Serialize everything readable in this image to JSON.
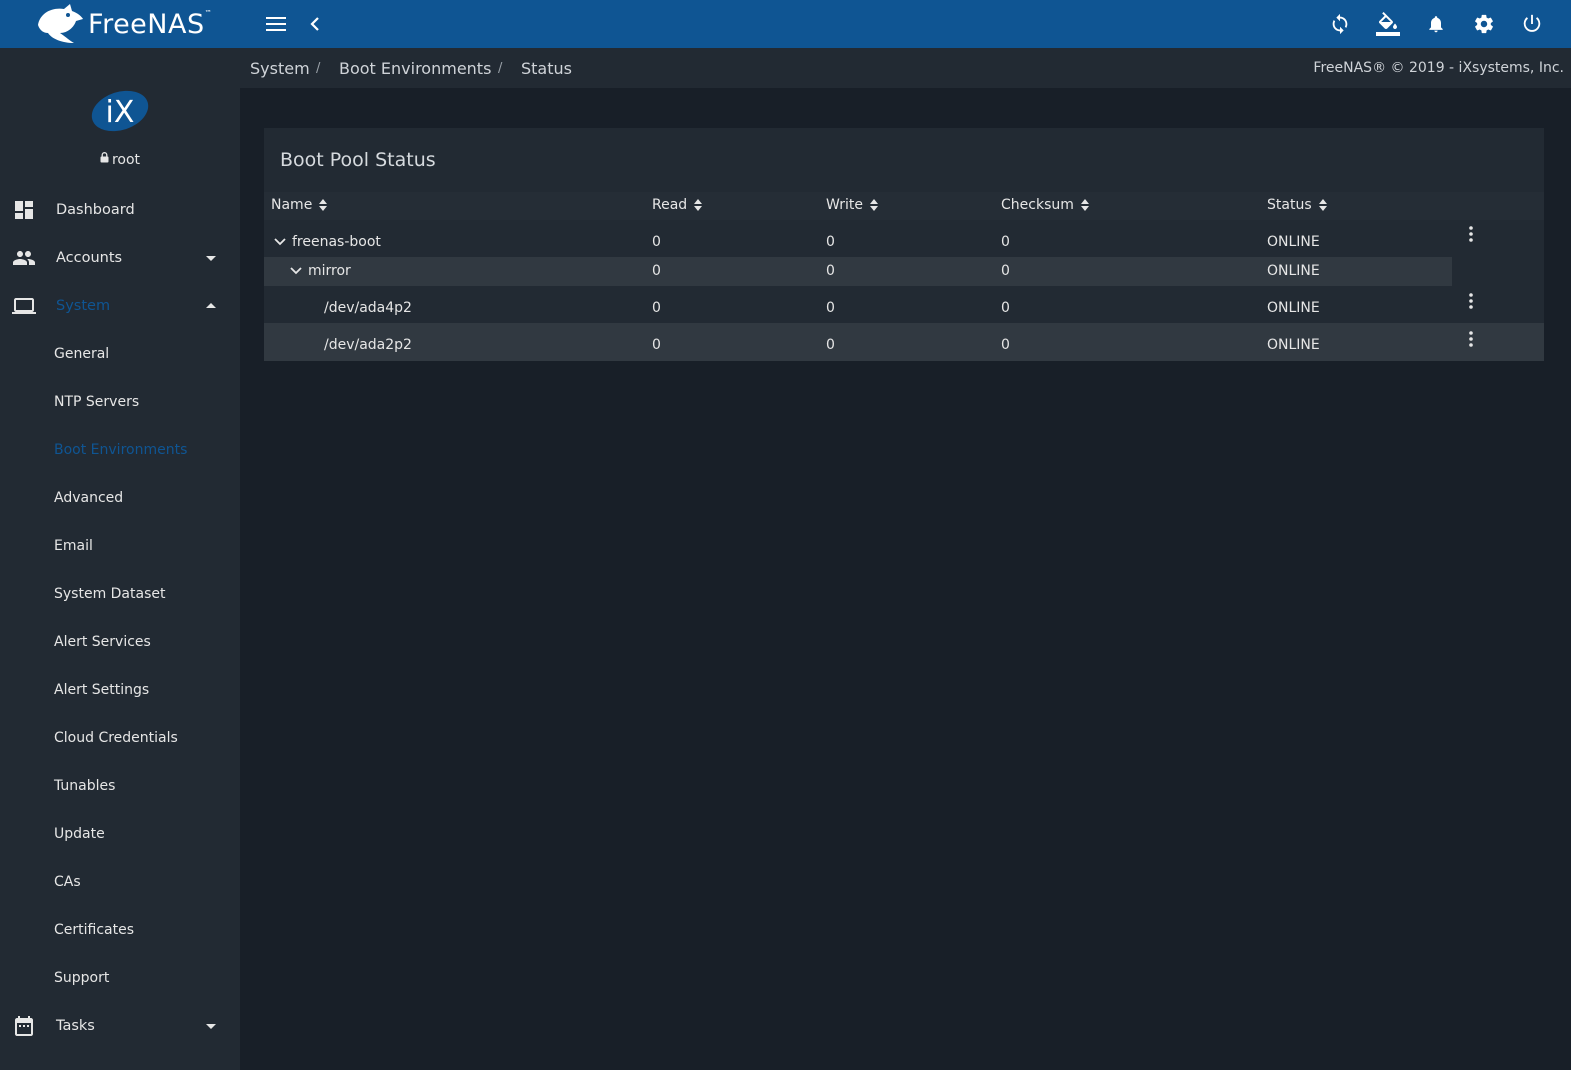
{
  "app": {
    "brand": "FreeNAS",
    "trademark": "™"
  },
  "toolbar": {
    "icons": [
      "menu-icon",
      "back-chevron-icon",
      "refresh-icon",
      "theme-bucket-icon",
      "notifications-bell-icon",
      "settings-gear-icon",
      "power-icon"
    ]
  },
  "user": {
    "avatar_text": "iX",
    "name": "root"
  },
  "sidebar": {
    "items": [
      {
        "label": "Dashboard",
        "icon": "dashboard-icon"
      },
      {
        "label": "Accounts",
        "icon": "accounts-icon"
      },
      {
        "label": "System",
        "icon": "laptop-icon",
        "active": true
      },
      {
        "label": "Tasks",
        "icon": "calendar-icon"
      }
    ],
    "system_subitems": [
      "General",
      "NTP Servers",
      "Boot Environments",
      "Advanced",
      "Email",
      "System Dataset",
      "Alert Services",
      "Alert Settings",
      "Cloud Credentials",
      "Tunables",
      "Update",
      "CAs",
      "Certificates",
      "Support"
    ],
    "active_subitem": "Boot Environments"
  },
  "breadcrumb": {
    "items": [
      "System",
      "Boot Environments",
      "Status"
    ],
    "separator": "/"
  },
  "copyright": "FreeNAS® © 2019 - iXsystems, Inc.",
  "card": {
    "title": "Boot Pool Status",
    "columns": [
      "Name",
      "Read",
      "Write",
      "Checksum",
      "Status"
    ],
    "rows": [
      {
        "name": "freenas-boot",
        "read": "0",
        "write": "0",
        "checksum": "0",
        "status": "ONLINE"
      },
      {
        "name": "mirror",
        "read": "0",
        "write": "0",
        "checksum": "0",
        "status": "ONLINE"
      },
      {
        "name": "/dev/ada4p2",
        "read": "0",
        "write": "0",
        "checksum": "0",
        "status": "ONLINE"
      },
      {
        "name": "/dev/ada2p2",
        "read": "0",
        "write": "0",
        "checksum": "0",
        "status": "ONLINE"
      }
    ]
  },
  "colors": {
    "topbar": "#0f5593",
    "sidebar": "#222a33",
    "background": "#181f28",
    "accent": "#0f5593"
  }
}
